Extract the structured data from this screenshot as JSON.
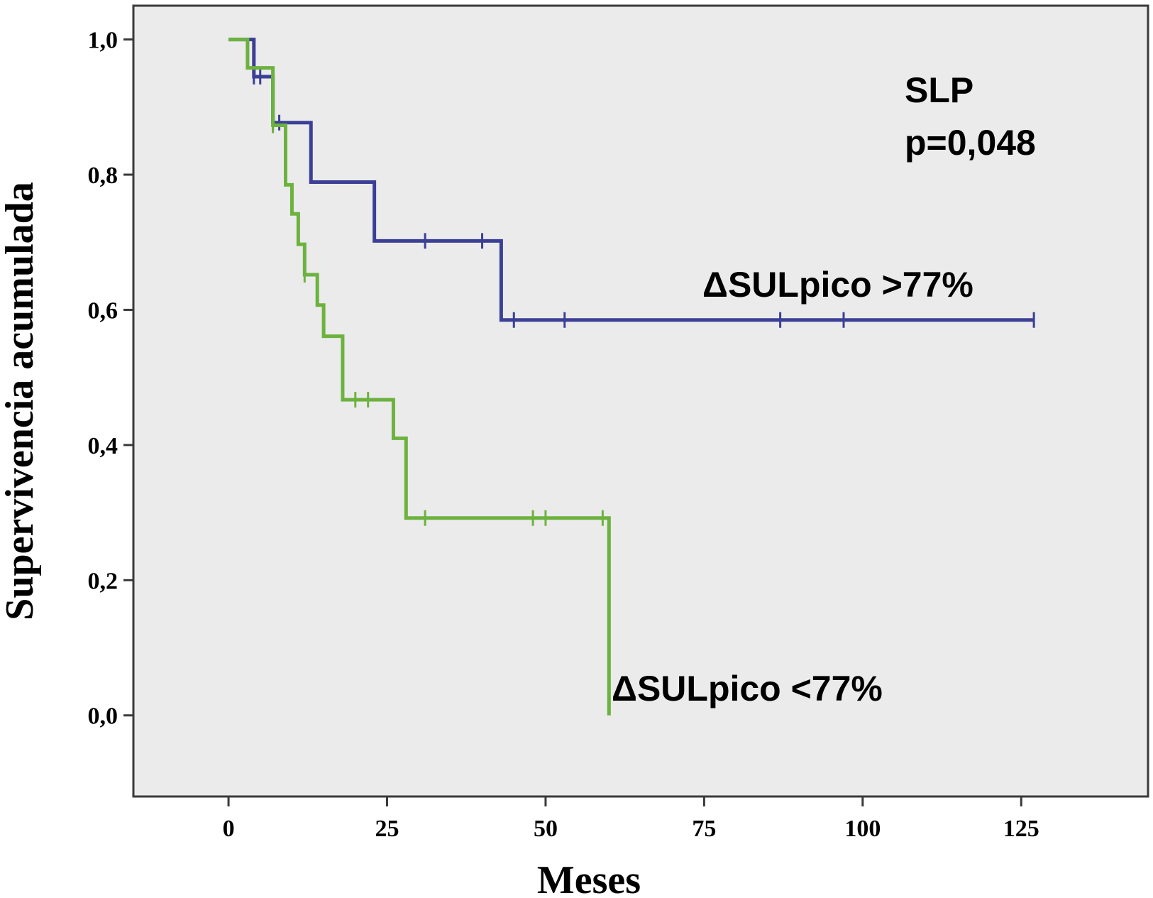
{
  "chart_data": {
    "type": "line",
    "subtype": "kaplan-meier step curve",
    "xlabel": "Meses",
    "ylabel": "Supervivencia acumulada",
    "xlim": [
      -15,
      145
    ],
    "ylim": [
      -0.12,
      1.05
    ],
    "x_ticks": [
      0,
      25,
      50,
      75,
      100,
      125
    ],
    "x_tick_labels": [
      "0",
      "25",
      "50",
      "75",
      "100",
      "125"
    ],
    "y_ticks": [
      0.0,
      0.2,
      0.4,
      0.6,
      0.8,
      1.0
    ],
    "y_tick_labels": [
      "0,0",
      "0,2",
      "0,4",
      "0,6",
      "0,8",
      "1,0"
    ],
    "grid": false,
    "background": "#ebebeb",
    "annotations": [
      "SLP",
      "p=0,048"
    ],
    "series": [
      {
        "name": "ΔSULpico >77%",
        "color": "#3b3f95",
        "steps": [
          [
            0,
            1.0
          ],
          [
            4,
            0.945
          ],
          [
            7,
            0.877
          ],
          [
            13,
            0.789
          ],
          [
            23,
            0.702
          ],
          [
            43,
            0.585
          ],
          [
            127,
            0.585
          ]
        ],
        "censored": [
          [
            4,
            0.945
          ],
          [
            5,
            0.945
          ],
          [
            7,
            0.877
          ],
          [
            8,
            0.877
          ],
          [
            31,
            0.702
          ],
          [
            40,
            0.702
          ],
          [
            45,
            0.585
          ],
          [
            53,
            0.585
          ],
          [
            87,
            0.585
          ],
          [
            97,
            0.585
          ],
          [
            127,
            0.585
          ]
        ]
      },
      {
        "name": "ΔSULpico <77%",
        "color": "#6cb23f",
        "steps": [
          [
            0,
            1.0
          ],
          [
            3,
            0.958
          ],
          [
            7,
            0.873
          ],
          [
            9,
            0.785
          ],
          [
            10,
            0.742
          ],
          [
            11,
            0.697
          ],
          [
            12,
            0.652
          ],
          [
            14,
            0.607
          ],
          [
            15,
            0.561
          ],
          [
            18,
            0.467
          ],
          [
            26,
            0.41
          ],
          [
            28,
            0.292
          ],
          [
            60,
            0.0
          ]
        ],
        "censored": [
          [
            7,
            0.873
          ],
          [
            12,
            0.652
          ],
          [
            20,
            0.467
          ],
          [
            22,
            0.467
          ],
          [
            31,
            0.292
          ],
          [
            48,
            0.292
          ],
          [
            50,
            0.292
          ],
          [
            59,
            0.292
          ]
        ]
      }
    ]
  }
}
